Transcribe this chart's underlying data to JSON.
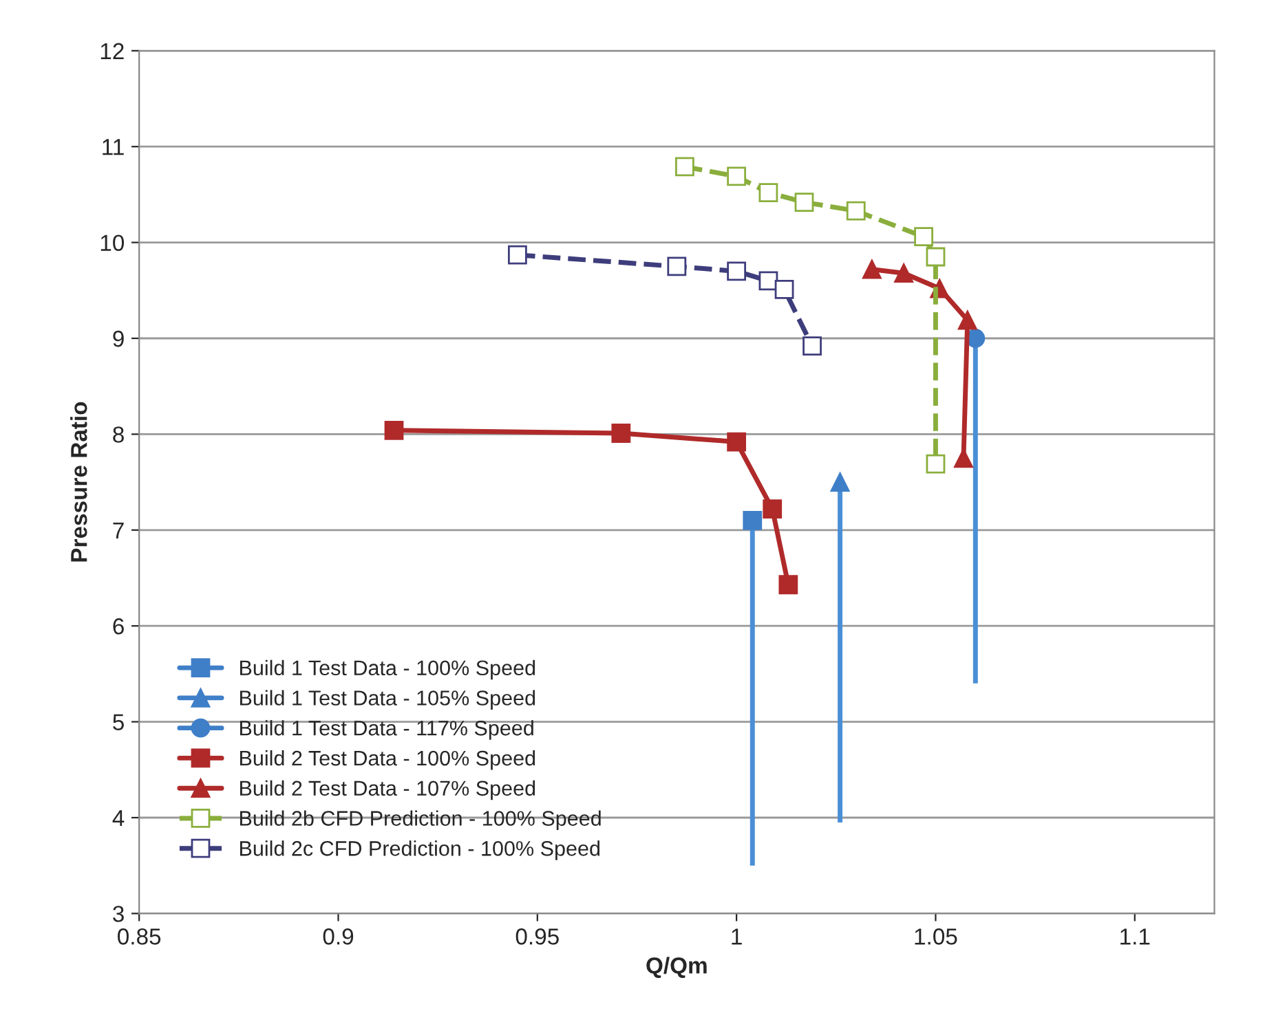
{
  "chart_data": {
    "type": "line",
    "xlabel": "Q/Qm",
    "ylabel": "Pressure Ratio",
    "xlim": [
      0.85,
      1.12
    ],
    "xticks": [
      0.85,
      0.9,
      0.95,
      1,
      1.05,
      1.1
    ],
    "ylim": [
      3,
      12
    ],
    "yticks": [
      3,
      4,
      5,
      6,
      7,
      8,
      9,
      10,
      11,
      12
    ],
    "grid": "y",
    "legend": "bottom left",
    "series": [
      {
        "name": "Build 1 Test Data - 100% Speed",
        "color": "#3f7fc8",
        "marker": "square",
        "line_style": "solid",
        "x": [
          1.004
        ],
        "values": [
          7.1
        ],
        "errors": [
          [
            3.5,
            7.1
          ]
        ]
      },
      {
        "name": "Build 1 Test Data - 105% Speed",
        "color": "#3f7fc8",
        "marker": "triangle",
        "line_style": "solid",
        "x": [
          1.026
        ],
        "values": [
          7.5
        ],
        "errors": [
          [
            3.95,
            7.5
          ]
        ]
      },
      {
        "name": "Build 1 Test Data - 117% Speed",
        "color": "#3f7fc8",
        "marker": "circle",
        "line_style": "solid",
        "x": [
          1.06
        ],
        "values": [
          9.0
        ],
        "errors": [
          [
            5.4,
            9.0
          ]
        ]
      },
      {
        "name": "Build 2 Test Data - 100% Speed",
        "color": "#b02a2a",
        "marker": "square",
        "line_style": "solid",
        "x": [
          0.914,
          0.971,
          1.0,
          1.009,
          1.013
        ],
        "values": [
          8.04,
          8.01,
          7.92,
          7.22,
          6.43
        ]
      },
      {
        "name": "Build 2 Test Data - 107% Speed",
        "color": "#b02a2a",
        "marker": "triangle",
        "line_style": "solid",
        "x": [
          1.034,
          1.042,
          1.051,
          1.058,
          1.057
        ],
        "values": [
          9.72,
          9.68,
          9.52,
          9.19,
          7.75
        ]
      },
      {
        "name": "Build 2b CFD Prediction - 100% Speed",
        "color": "#8aae3c",
        "marker": "square",
        "line_style": "dashed",
        "x": [
          0.987,
          1.0,
          1.008,
          1.017,
          1.03,
          1.047,
          1.05,
          1.05
        ],
        "values": [
          10.79,
          10.69,
          10.52,
          10.42,
          10.33,
          10.06,
          9.85,
          7.69
        ]
      },
      {
        "name": "Build 2c CFD Prediction - 100% Speed",
        "color": "#3e3d7c",
        "marker": "square",
        "line_style": "dashed",
        "x": [
          0.945,
          0.985,
          1.0,
          1.008,
          1.012,
          1.019
        ],
        "values": [
          9.87,
          9.75,
          9.7,
          9.6,
          9.51,
          8.92
        ]
      }
    ]
  }
}
